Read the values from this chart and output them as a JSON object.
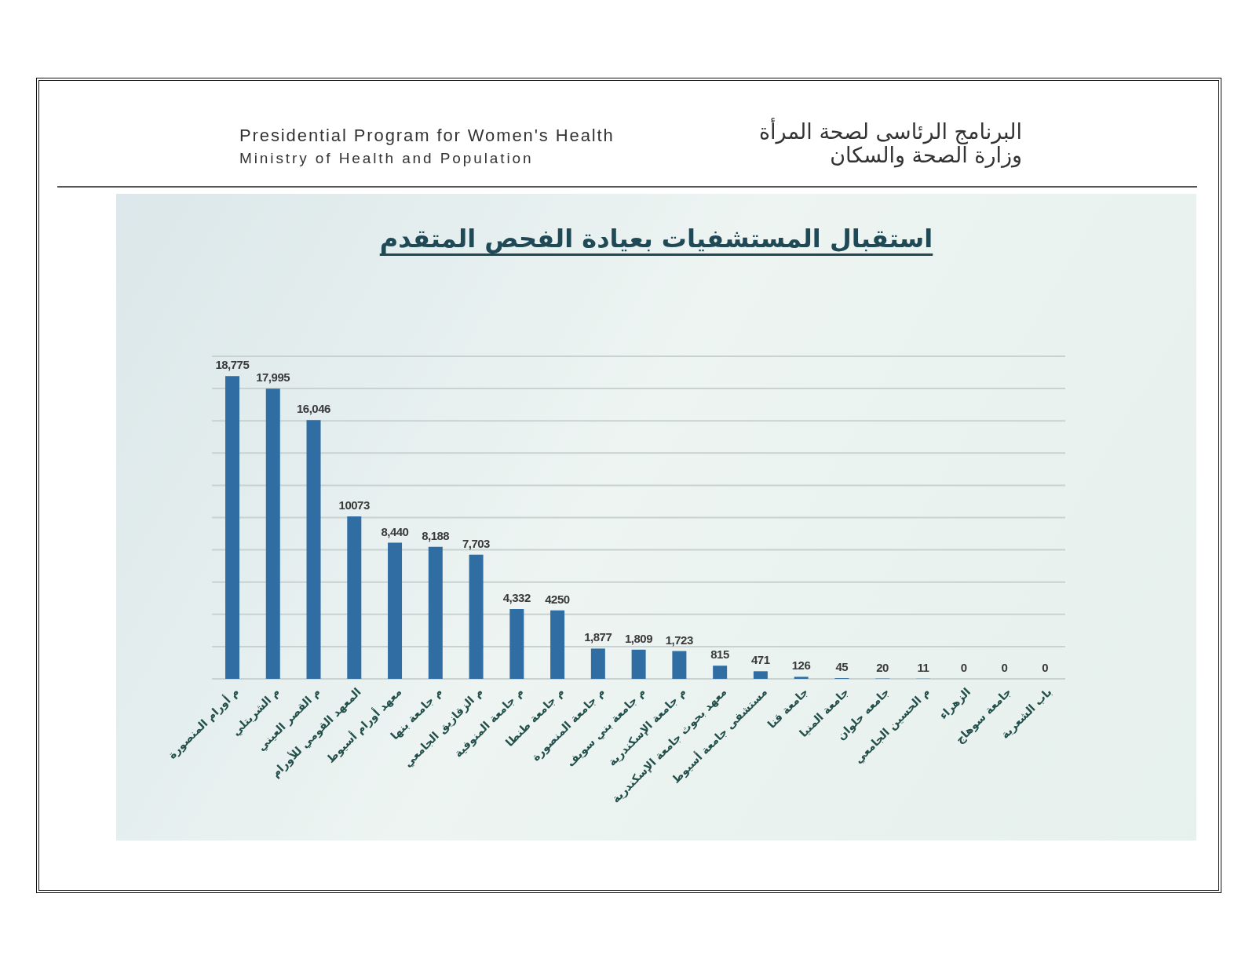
{
  "chart_data": {
    "type": "bar",
    "title": "استقبال المستشفيات بعيادة الفحص المتقدم",
    "annotations": [
      "Presidential Program for Women's Health",
      "Ministry of Health and Population",
      "البرنامج الرئاسى لصحة المرأة",
      "وزارة الصحة والسكان"
    ],
    "categories": [
      "م أورام المنصورة",
      "م الشربتلي",
      "م القصر العيني",
      "المعهد القومي للأورام",
      "معهد أورام أسيوط",
      "م جامعة بنها",
      "م الزقازيق الجامعي",
      "م جامعة المنوفية",
      "م جامعة طنطا",
      "م جامعة المنصورة",
      "م جامعة بني سويف",
      "م جامعة الإسكندرية",
      "معهد بحوث جامعة الإسكندرية",
      "مستشفى جامعة أسيوط",
      "جامعة قنا",
      "جامعة المنيا",
      "جامعه حلوان",
      "م الحسين الجامعي",
      "الزهراء",
      "جامعة سوهاج",
      "باب الشعرية"
    ],
    "values": [
      18775,
      17995,
      16046,
      10073,
      8440,
      8188,
      7703,
      4332,
      4250,
      1877,
      1809,
      1723,
      815,
      471,
      126,
      45,
      20,
      11,
      0,
      0,
      0
    ],
    "value_labels": [
      "18,775",
      "17,995",
      "16,046",
      "10073",
      "8,440",
      "8,188",
      "7,703",
      "4,332",
      "4250",
      "1,877",
      "1,809",
      "1,723",
      "815",
      "471",
      "126",
      "45",
      "20",
      "11",
      "0",
      "0",
      "0"
    ],
    "color": "#2f6da3",
    "grid": "y",
    "tick_labels": "x"
  }
}
